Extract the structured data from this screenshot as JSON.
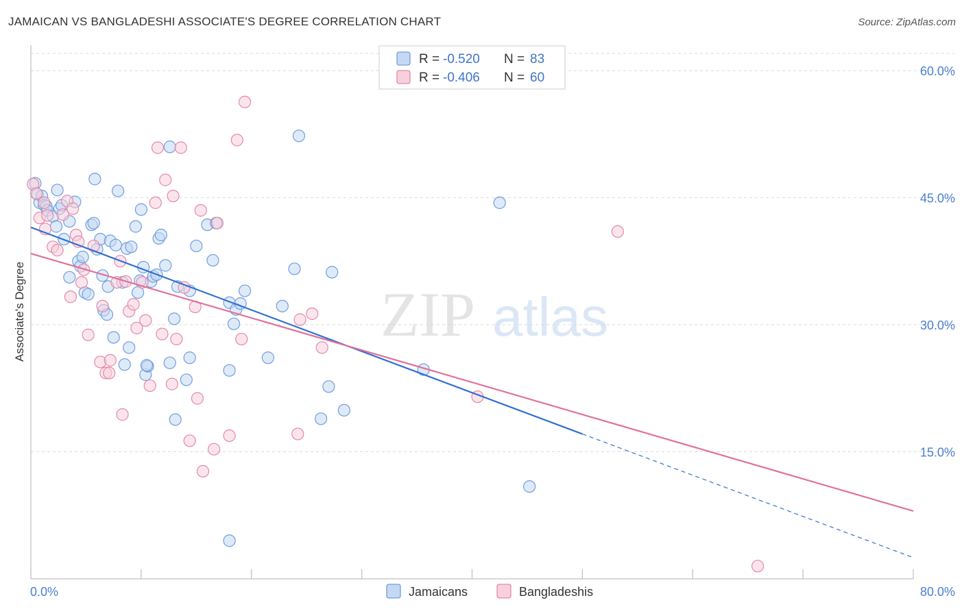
{
  "title": "JAMAICAN VS BANGLADESHI ASSOCIATE'S DEGREE CORRELATION CHART",
  "source": "Source: ZipAtlas.com",
  "watermark": {
    "zip": "ZIP",
    "atlas": "atlas"
  },
  "stats": [
    {
      "r_label": "R =",
      "r_value": "-0.520",
      "n_label": "N =",
      "n_value": "83"
    },
    {
      "r_label": "R =",
      "r_value": "-0.406",
      "n_label": "N =",
      "n_value": "60"
    }
  ],
  "colors": {
    "jamaican_fill": "#c5d8f3",
    "jamaican_stroke": "#6f9ede",
    "jamaican_line": "#2e6fd2",
    "bangladeshi_fill": "#f8cfdc",
    "bangladeshi_stroke": "#e38aa6",
    "bangladeshi_line": "#e0709a",
    "tick_text": "#4a7fd0",
    "grid": "#d9d9d9"
  },
  "chart_data": {
    "type": "scatter",
    "title": "JAMAICAN VS BANGLADESHI ASSOCIATE'S DEGREE CORRELATION CHART",
    "xlabel": "",
    "ylabel": "Associate's Degree",
    "xlim": [
      0,
      80
    ],
    "ylim": [
      0,
      63
    ],
    "x_tick_labels": [
      "0.0%",
      "80.0%"
    ],
    "y_ticks": [
      15,
      30,
      45,
      60
    ],
    "y_tick_labels": [
      "15.0%",
      "30.0%",
      "45.0%",
      "60.0%"
    ],
    "grid": true,
    "legend_position": "bottom",
    "series": [
      {
        "name": "Jamaicans",
        "trend": {
          "x0": 0,
          "y0": 41.5,
          "x1": 50,
          "y1": 17.1,
          "dash_to_x": 80,
          "dash_to_y": 2.5
        },
        "points": [
          [
            0.4,
            46.7
          ],
          [
            0.6,
            45.4
          ],
          [
            0.8,
            44.4
          ],
          [
            1.0,
            45.2
          ],
          [
            1.2,
            44.1
          ],
          [
            1.4,
            44.0
          ],
          [
            1.5,
            43.5
          ],
          [
            2.0,
            42.8
          ],
          [
            2.4,
            45.9
          ],
          [
            2.6,
            43.7
          ],
          [
            2.8,
            44.1
          ],
          [
            2.3,
            41.6
          ],
          [
            3.0,
            40.1
          ],
          [
            3.5,
            42.2
          ],
          [
            4.0,
            44.5
          ],
          [
            4.3,
            37.5
          ],
          [
            4.5,
            36.9
          ],
          [
            4.7,
            38.0
          ],
          [
            3.5,
            35.6
          ],
          [
            4.9,
            33.8
          ],
          [
            5.2,
            33.6
          ],
          [
            5.5,
            41.8
          ],
          [
            5.7,
            42.0
          ],
          [
            5.8,
            47.2
          ],
          [
            6.0,
            38.9
          ],
          [
            6.3,
            40.1
          ],
          [
            6.5,
            35.8
          ],
          [
            6.6,
            31.7
          ],
          [
            6.9,
            31.2
          ],
          [
            7.2,
            39.9
          ],
          [
            7.5,
            28.5
          ],
          [
            7.7,
            39.4
          ],
          [
            7.9,
            45.8
          ],
          [
            8.3,
            35.0
          ],
          [
            8.5,
            25.3
          ],
          [
            8.7,
            39.0
          ],
          [
            8.9,
            27.3
          ],
          [
            9.1,
            39.2
          ],
          [
            9.5,
            41.6
          ],
          [
            9.7,
            33.8
          ],
          [
            10.0,
            43.6
          ],
          [
            10.2,
            36.8
          ],
          [
            10.4,
            24.1
          ],
          [
            10.6,
            25.1
          ],
          [
            10.9,
            35.1
          ],
          [
            11.1,
            35.7
          ],
          [
            11.4,
            35.9
          ],
          [
            11.6,
            40.2
          ],
          [
            11.8,
            40.6
          ],
          [
            12.2,
            37.0
          ],
          [
            12.6,
            25.5
          ],
          [
            12.6,
            51.0
          ],
          [
            13.0,
            30.7
          ],
          [
            13.3,
            34.5
          ],
          [
            13.1,
            18.8
          ],
          [
            14.1,
            23.5
          ],
          [
            14.4,
            26.1
          ],
          [
            14.4,
            34.0
          ],
          [
            15.0,
            39.3
          ],
          [
            16.0,
            41.8
          ],
          [
            16.5,
            37.6
          ],
          [
            16.8,
            42.0
          ],
          [
            18.0,
            32.6
          ],
          [
            18.0,
            24.6
          ],
          [
            18.4,
            30.1
          ],
          [
            18.6,
            31.8
          ],
          [
            19.0,
            32.5
          ],
          [
            19.4,
            34.0
          ],
          [
            18.0,
            4.5
          ],
          [
            21.5,
            26.1
          ],
          [
            22.8,
            32.2
          ],
          [
            23.9,
            36.6
          ],
          [
            24.3,
            52.3
          ],
          [
            26.3,
            18.9
          ],
          [
            27.0,
            22.7
          ],
          [
            27.3,
            36.2
          ],
          [
            28.4,
            19.9
          ],
          [
            35.6,
            24.7
          ],
          [
            42.5,
            44.4
          ],
          [
            45.2,
            10.9
          ],
          [
            10.5,
            25.2
          ],
          [
            7.0,
            34.5
          ],
          [
            9.9,
            35.2
          ]
        ]
      },
      {
        "name": "Bangladeshis",
        "trend": {
          "x0": 0,
          "y0": 38.4,
          "x1": 80,
          "y1": 8.0
        },
        "points": [
          [
            0.2,
            46.6
          ],
          [
            0.5,
            45.5
          ],
          [
            0.8,
            42.6
          ],
          [
            1.2,
            44.4
          ],
          [
            1.3,
            41.3
          ],
          [
            1.5,
            42.9
          ],
          [
            2.0,
            39.2
          ],
          [
            2.4,
            38.8
          ],
          [
            2.9,
            43.0
          ],
          [
            3.3,
            44.6
          ],
          [
            3.6,
            33.3
          ],
          [
            3.8,
            43.7
          ],
          [
            4.1,
            40.6
          ],
          [
            4.3,
            39.8
          ],
          [
            4.6,
            35.0
          ],
          [
            4.8,
            36.5
          ],
          [
            5.2,
            28.8
          ],
          [
            5.7,
            39.3
          ],
          [
            6.3,
            25.6
          ],
          [
            6.5,
            32.2
          ],
          [
            6.8,
            24.3
          ],
          [
            7.1,
            24.3
          ],
          [
            7.2,
            25.8
          ],
          [
            7.8,
            35.0
          ],
          [
            8.1,
            37.5
          ],
          [
            8.3,
            19.4
          ],
          [
            8.6,
            35.1
          ],
          [
            8.9,
            31.6
          ],
          [
            9.3,
            32.4
          ],
          [
            9.6,
            29.6
          ],
          [
            10.1,
            35.0
          ],
          [
            10.4,
            30.5
          ],
          [
            10.8,
            22.8
          ],
          [
            11.3,
            44.4
          ],
          [
            11.5,
            50.9
          ],
          [
            11.9,
            28.9
          ],
          [
            12.2,
            47.1
          ],
          [
            12.8,
            23.0
          ],
          [
            12.9,
            45.2
          ],
          [
            13.2,
            28.3
          ],
          [
            13.6,
            50.9
          ],
          [
            13.9,
            34.4
          ],
          [
            14.4,
            16.3
          ],
          [
            14.9,
            32.1
          ],
          [
            15.1,
            21.3
          ],
          [
            15.4,
            43.5
          ],
          [
            15.6,
            12.7
          ],
          [
            16.6,
            15.3
          ],
          [
            16.9,
            42.0
          ],
          [
            18.0,
            16.9
          ],
          [
            18.7,
            51.8
          ],
          [
            19.1,
            28.3
          ],
          [
            19.4,
            56.3
          ],
          [
            24.2,
            17.1
          ],
          [
            24.4,
            30.6
          ],
          [
            25.5,
            31.3
          ],
          [
            26.4,
            27.3
          ],
          [
            40.5,
            21.5
          ],
          [
            53.2,
            41.0
          ],
          [
            65.9,
            1.5
          ]
        ]
      }
    ]
  }
}
